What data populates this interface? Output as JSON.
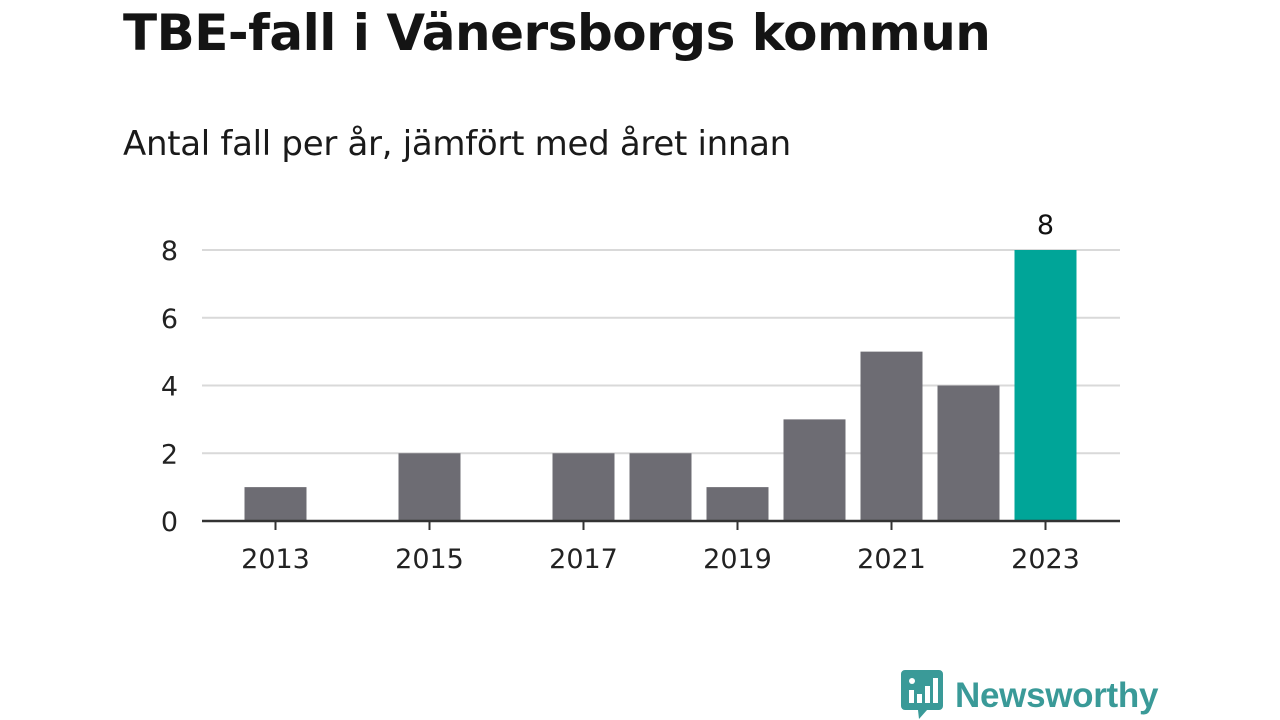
{
  "title": "TBE-fall i Vänersborgs kommun",
  "subtitle": "Antal fall per år, jämfört med året innan",
  "logo": {
    "text": "Newsworthy",
    "color": "#3a9a98"
  },
  "colors": {
    "bar": "#6d6c73",
    "highlight": "#00a598",
    "grid": "#d9d9d9",
    "axis": "#333333",
    "text": "#222222"
  },
  "chart_data": {
    "type": "bar",
    "title": "TBE-fall i Vänersborgs kommun",
    "subtitle": "Antal fall per år, jämfört med året innan",
    "categories": [
      "2013",
      "2014",
      "2015",
      "2016",
      "2017",
      "2018",
      "2019",
      "2020",
      "2021",
      "2022",
      "2023"
    ],
    "values": [
      1,
      0,
      2,
      0,
      2,
      2,
      1,
      3,
      5,
      4,
      8
    ],
    "highlight_index": 10,
    "data_labels": [
      {
        "index": 10,
        "text": "8"
      }
    ],
    "xtick_labels": [
      "2013",
      "2015",
      "2017",
      "2019",
      "2021",
      "2023"
    ],
    "yticks": [
      0,
      2,
      4,
      6,
      8
    ],
    "ylim": [
      0,
      8
    ],
    "xlabel": "",
    "ylabel": "",
    "grid": true,
    "legend": "none"
  }
}
